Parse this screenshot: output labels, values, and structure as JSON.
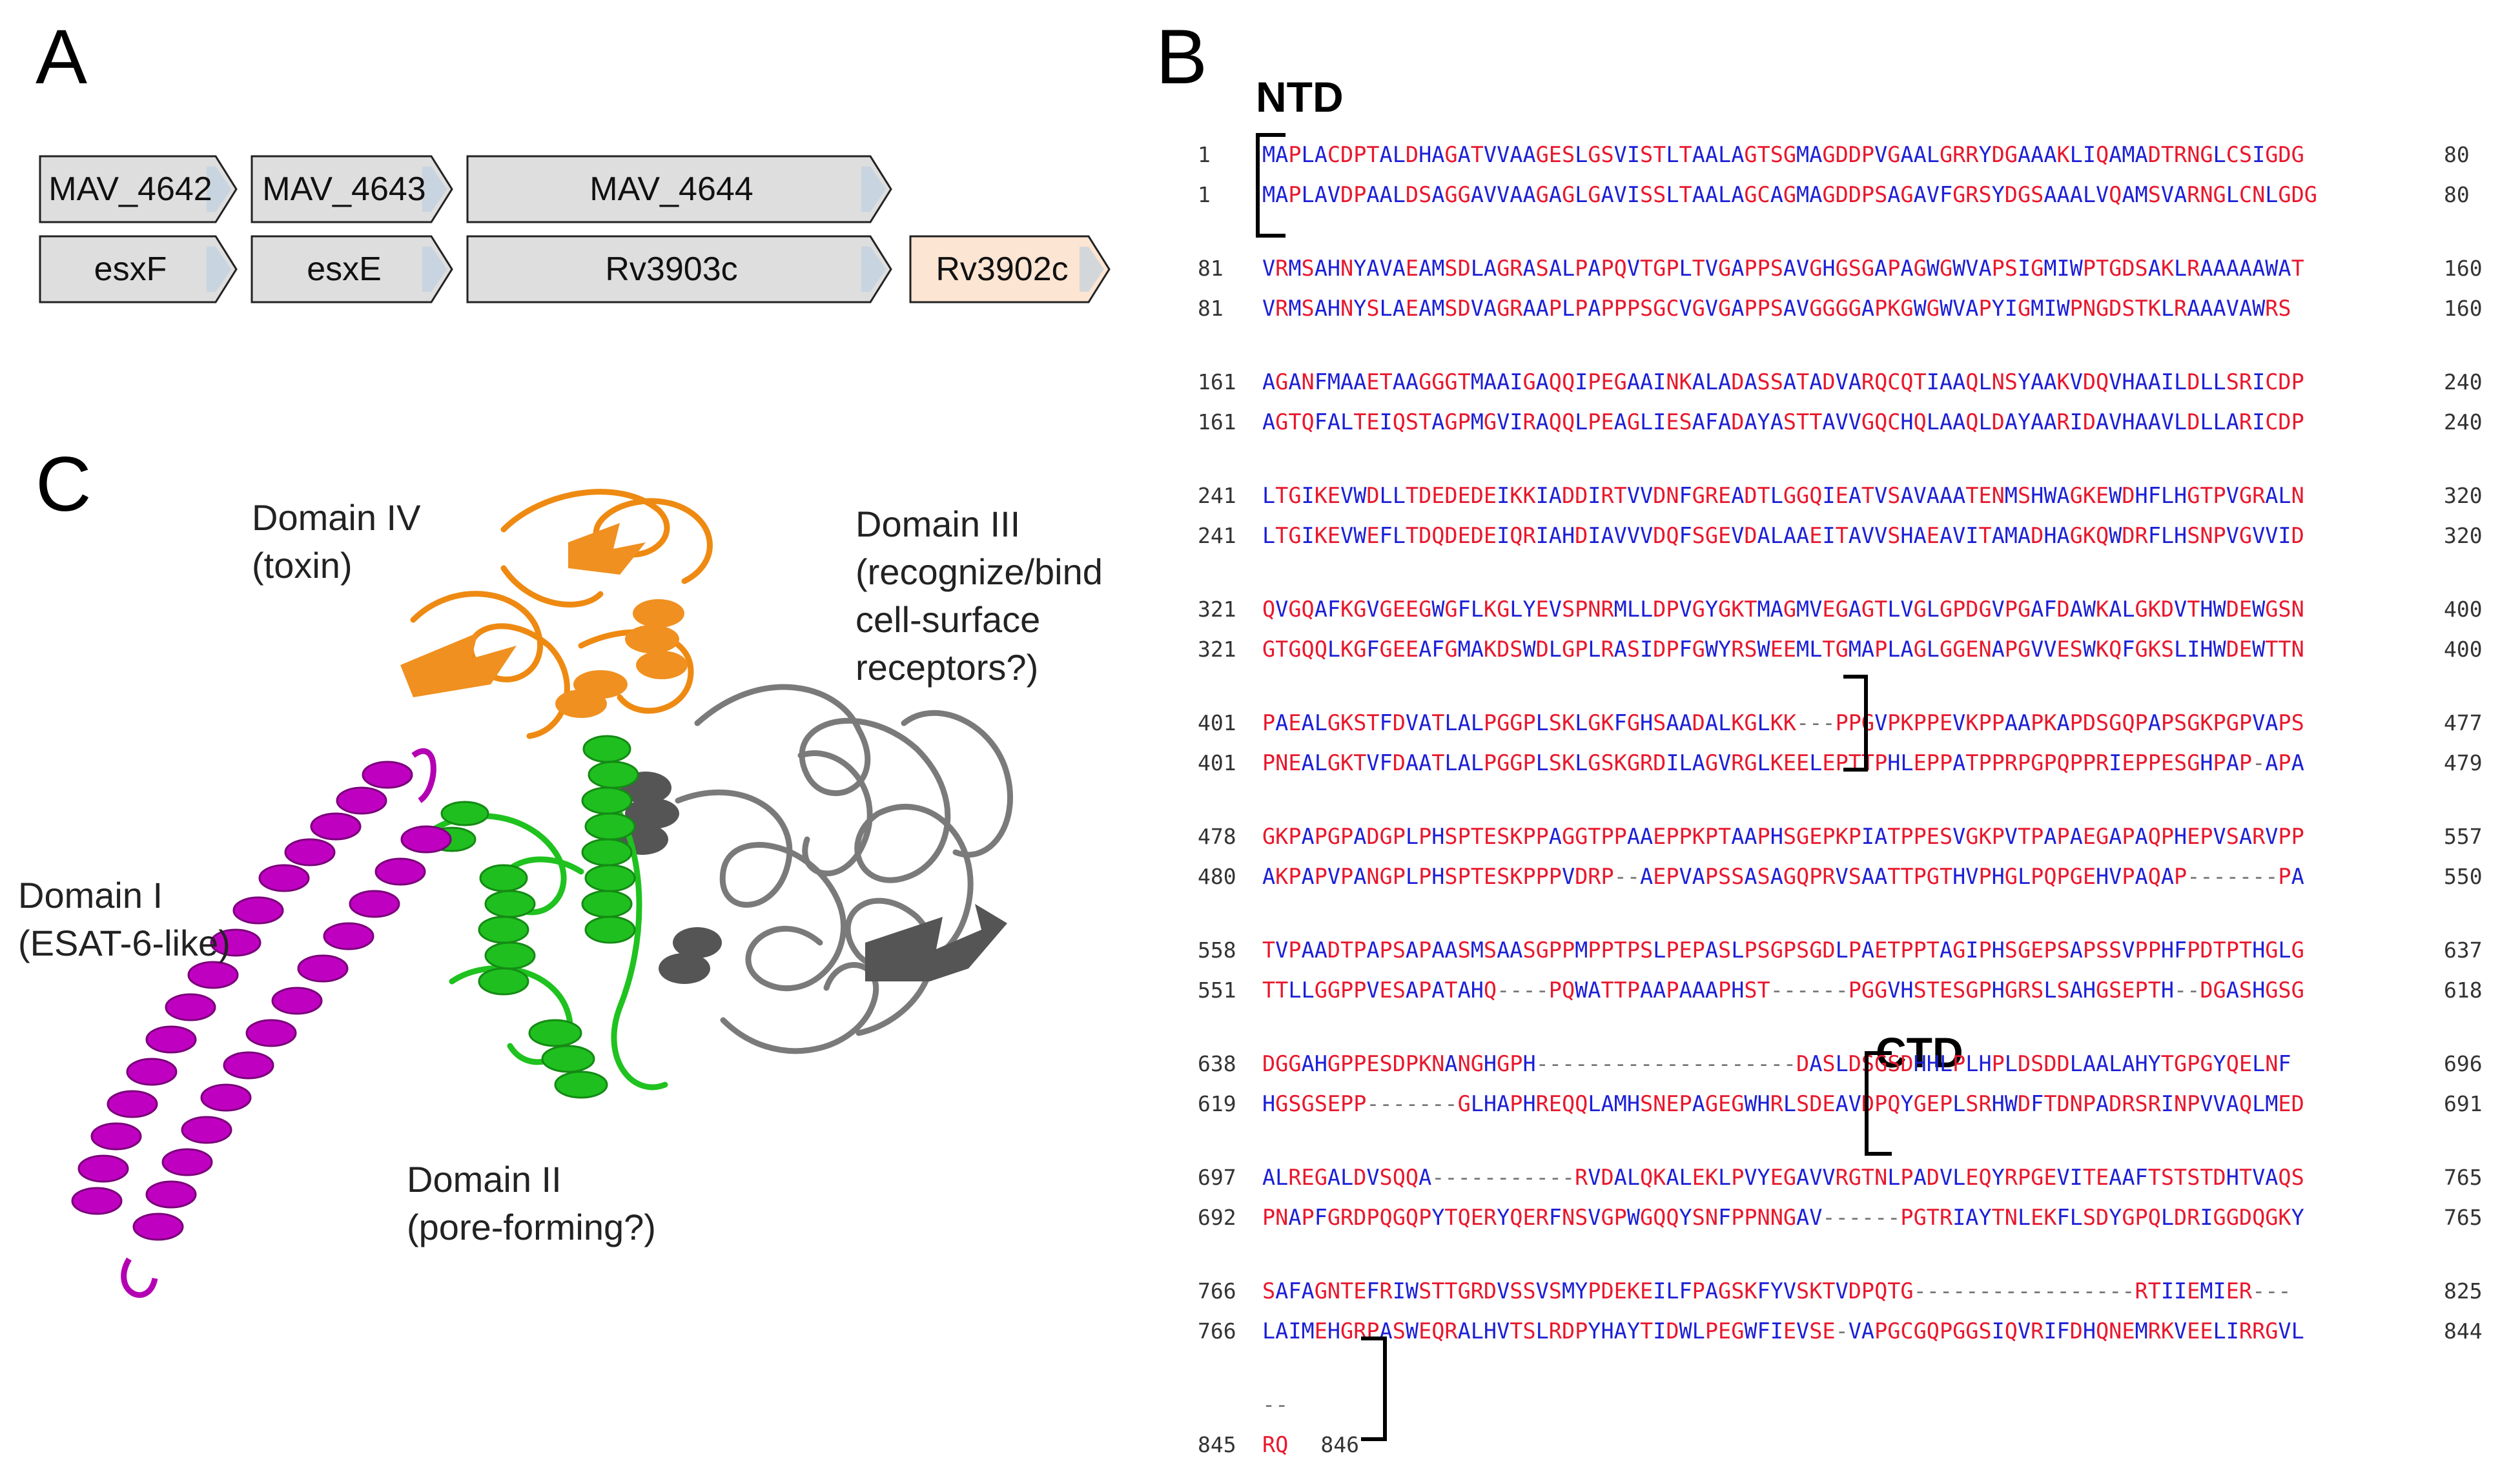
{
  "panels": {
    "a": "A",
    "b": "B",
    "c": "C"
  },
  "genes": {
    "row1": [
      {
        "label": "MAV_4642",
        "fill": "#dedede"
      },
      {
        "label": "MAV_4643",
        "fill": "#dedede"
      },
      {
        "label": "MAV_4644",
        "fill": "#dedede"
      }
    ],
    "row2": [
      {
        "label": "esxF",
        "fill": "#dedede"
      },
      {
        "label": "esxE",
        "fill": "#dedede"
      },
      {
        "label": "Rv3903c",
        "fill": "#dedede"
      },
      {
        "label": "Rv3902c",
        "fill": "#fde5d3"
      }
    ]
  },
  "domains": {
    "d4": [
      "Domain IV",
      "(toxin)"
    ],
    "d3": [
      "Domain III",
      "(recognize/bind",
      "cell-surface",
      "receptors?)"
    ],
    "d1": [
      "Domain I",
      "(ESAT-6-like)"
    ],
    "d2": [
      "Domain II",
      "(pore-forming?)"
    ]
  },
  "structure_colors": {
    "domain_I": "#b300b3",
    "domain_II": "#1fc21f",
    "domain_III": "#808080",
    "domain_IV": "#ee8a12"
  },
  "alignment": {
    "ntd_label": "NTD",
    "ctd_label": "CTD",
    "blocks": [
      {
        "a": {
          "s": "1",
          "seq": "MAPLACDPTALDHAGATVVAAGESLGSVISTLTAALAGTSGMAGDDPVGAALGRRYDGAAAKLIQAMADTRNGLCSIGDG",
          "e": "80"
        },
        "b": {
          "s": "1",
          "seq": "MAPLAVDPAALDSAGGAVVAAGAGLGAVISSLTAALAGCAGMAGDDPSAGAVFGRSYDGSAAALVQAMSVARNGLCNLGDG",
          "e": "80"
        }
      },
      {
        "a": {
          "s": "81",
          "seq": "VRMSAHNYAVAEAMSDLAGRASALPAPQVTGPLTVGAPPSAVGHGSGAPAGWGWVAPSIGMIWPTGDSAKLRAAAAAWAT",
          "e": "160"
        },
        "b": {
          "s": "81",
          "seq": "VRMSAHNYSLAEAMSDVAGRAAPLPAPPPSGCVGVGAPPSAVGGGGAPKGWGWVAPYIGMIWPNGDSTKLRAAAVAWRS",
          "e": "160"
        }
      },
      {
        "a": {
          "s": "161",
          "seq": "AGANFMAAETAAGGGTMAAIGAQQIPEGAAINKALADASSATADVARQCQTIAAQLNSYAAKVDQVHAAILDLLSRICDP",
          "e": "240"
        },
        "b": {
          "s": "161",
          "seq": "AGTQFALTEIQSTAGPMGVIRAQQLPEAGLIESAFADAYASTTAVVGQCHQLAAQLDAYAARIDAVHAAVLDLLARICDP",
          "e": "240"
        }
      },
      {
        "a": {
          "s": "241",
          "seq": "LTGIKEVWDLLTDEDEDEIKKIADDIRTVVDNFGREADTLGGQIEATVSAVAAATENMSHWAGKEWDHFLHGTPVGRALN",
          "e": "320"
        },
        "b": {
          "s": "241",
          "seq": "LTGIKEVWEFLTDQDEDEIQRIAHDIAVVVDQFSGEVDALAAEITAVVSHAEAVITAMADHAGKQWDRFLHSNPVGVVID",
          "e": "320"
        }
      },
      {
        "a": {
          "s": "321",
          "seq": "QVGQAFKGVGEEGWGFLKGLYEVSPNRMLLDPVGYGKTMAGMVEGAGTLVGLGPDGVPGAFDAWKALGKDVTHWDEWGSN",
          "e": "400"
        },
        "b": {
          "s": "321",
          "seq": "GTGQQLKGFGEEAFGMAKDSWDLGPLRASIDPFGWYRSWEEMLTGMAPLAGLGGENAPGVVESWKQFGKSLIHWDEWTTN",
          "e": "400"
        }
      },
      {
        "a": {
          "s": "401",
          "seq": "PAEALGKSTFDVATLALPGGPLSKLGKFGHSAADALKGLKK---PPGVPKPPEVKPPAAPKAPDSGQPAPSGKPGPVAPS",
          "e": "477"
        },
        "b": {
          "s": "401",
          "seq": "PNEALGKTVFDAATLALPGGPLSKLGSKGRDILAGVRGLKEELEPTTPHLEPPATPPRPGPQPPRIEPPESGHPAP-APA",
          "e": "479"
        }
      },
      {
        "a": {
          "s": "478",
          "seq": "GKPAPGPADGPLPHSPTESKPPAGGTPPAAEPPKPTAAPHSGEPKPIATPPESVGKPVTPAPAEGAPAQPHEPVSARVPP",
          "e": "557"
        },
        "b": {
          "s": "480",
          "seq": "AKPAPVPANGPLPHSPTESKPPPVDRP--AEPVAPSSASAGQPRVSAATTPGTHVPHGLPQPGEHVPAQAP-------PA",
          "e": "550"
        }
      },
      {
        "a": {
          "s": "558",
          "seq": "TVPAADTPAPSAPAASMSAASGPPMPPTPSLPEPASLPSGPSGDLPAETPPTAGIPHSGEPSAPSSVPPHFPDTPTHGLG",
          "e": "637"
        },
        "b": {
          "s": "551",
          "seq": "TTLLGGPPVESAPATAHQ----PQWATTPAAPAAAPHST------PGGVHSTESGPHGRSLSAHGSEPTH--DGASHGSG",
          "e": "618"
        }
      },
      {
        "a": {
          "s": "638",
          "seq": "DGGAHGPPESDPKNANGHGPH--------------------DASLDSGSDHHLPLHPLDSDDLAALAHYTGPGYQELNF",
          "e": "696"
        },
        "b": {
          "s": "619",
          "seq": "HGSGSEPP-------GLHAPHREQQLAMHSNEPAGEGWHRLSDEAVDPQYGEPLSRHWDFTDNPADRSRINPVVAQLMED",
          "e": "691"
        }
      },
      {
        "a": {
          "s": "697",
          "seq": "ALREGALDVSQQA-----------RVDALQKALEKLPVYEGAVVRGTNLPADVLEQYRPGEVITEAAFTSTSTDHTVAQS",
          "e": "765"
        },
        "b": {
          "s": "692",
          "seq": "PNAPFGRDPQGQPYTQERYQERFNSVGPWGQQYSNFPPNNGAV------PGTRIAYTNLEKFLSDYGPQLDRIGGDQGKY",
          "e": "765"
        }
      },
      {
        "a": {
          "s": "766",
          "seq": "SAFAGNTEFRIWSTTGRDVSSVSMYPDEKEILFPAGSKFYVSKTVDPQTG-----------------RTIIEMIER---",
          "e": "825"
        },
        "b": {
          "s": "766",
          "seq": "LAIMEHGRPASWEQRALHVTSLRDPYHAYTIDWLPEGWFIEVSE-VAPGCGQPGGSIQVRIFDHQNEMRKVEELIRRGVL",
          "e": "844"
        }
      },
      {
        "a": {
          "s": "",
          "seq": "--",
          "e": ""
        },
        "b": {
          "s": "845",
          "seq": "RQ",
          "e": "846"
        }
      }
    ]
  }
}
